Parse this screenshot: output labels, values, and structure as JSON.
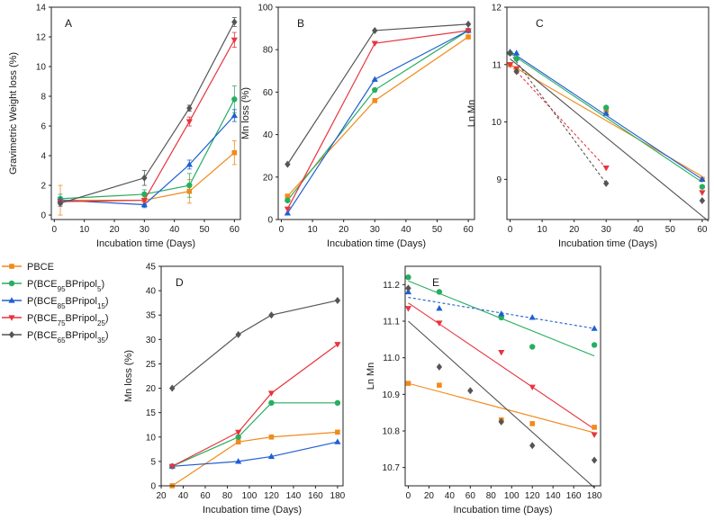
{
  "colors": {
    "PBCE": "#f28a1b",
    "P5": "#27ae60",
    "P15": "#1f5fd1",
    "P25": "#e8343f",
    "P35": "#555555"
  },
  "legend": [
    {
      "key": "PBCE",
      "prefix": "PBCE",
      "sub1": "",
      "mid": "",
      "sub2": "",
      "suffix": "",
      "marker": "square"
    },
    {
      "key": "P5",
      "prefix": "P(BCE",
      "sub1": "95",
      "mid": "BPripol",
      "sub2": "5",
      "suffix": ")",
      "marker": "circle"
    },
    {
      "key": "P15",
      "prefix": "P(BCE",
      "sub1": "85",
      "mid": "BPripol",
      "sub2": "15",
      "suffix": ")",
      "marker": "triangle-up"
    },
    {
      "key": "P25",
      "prefix": "P(BCE",
      "sub1": "75",
      "mid": "BPripol",
      "sub2": "25",
      "suffix": ")",
      "marker": "triangle-down"
    },
    {
      "key": "P35",
      "prefix": "P(BCE",
      "sub1": "65",
      "mid": "BPripol",
      "sub2": "35",
      "suffix": ")",
      "marker": "diamond"
    }
  ],
  "chart_data": [
    {
      "panel": "A",
      "type": "line",
      "xlabel": "Incubation time (Days)",
      "ylabel": "Gravimetric Weight loss (%)",
      "xlim": [
        -1,
        62
      ],
      "ylim": [
        -0.3,
        14
      ],
      "xticks": [
        0,
        10,
        20,
        30,
        40,
        50,
        60
      ],
      "yticks": [
        0,
        2,
        4,
        6,
        8,
        10,
        12,
        14
      ],
      "series": [
        {
          "key": "PBCE",
          "x": [
            2,
            30,
            45,
            60
          ],
          "y": [
            1.0,
            1.0,
            1.6,
            4.2
          ],
          "err": [
            1.0,
            0.3,
            0.8,
            0.8
          ]
        },
        {
          "key": "P5",
          "x": [
            2,
            30,
            45,
            60
          ],
          "y": [
            1.1,
            1.4,
            2.0,
            7.8
          ],
          "err": [
            0.3,
            0.3,
            0.8,
            0.9
          ]
        },
        {
          "key": "P15",
          "x": [
            2,
            30,
            45,
            60
          ],
          "y": [
            1.0,
            0.7,
            3.4,
            6.7
          ],
          "err": [
            0.2,
            0.2,
            0.3,
            0.4
          ]
        },
        {
          "key": "P25",
          "x": [
            2,
            30,
            45,
            60
          ],
          "y": [
            0.9,
            1.0,
            6.3,
            11.8
          ],
          "err": [
            0.2,
            0.3,
            0.3,
            0.5
          ]
        },
        {
          "key": "P35",
          "x": [
            2,
            30,
            45,
            60
          ],
          "y": [
            0.8,
            2.5,
            7.2,
            13.0
          ],
          "err": [
            0.2,
            0.5,
            0.2,
            0.3
          ]
        }
      ]
    },
    {
      "panel": "B",
      "type": "line",
      "xlabel": "Incubation time (Days)",
      "ylabel": "Mn loss (%)",
      "xlim": [
        -1,
        62
      ],
      "ylim": [
        0,
        100
      ],
      "xticks": [
        0,
        10,
        20,
        30,
        40,
        50,
        60
      ],
      "yticks": [
        0,
        20,
        40,
        60,
        80,
        100
      ],
      "series": [
        {
          "key": "PBCE",
          "x": [
            2,
            30,
            60
          ],
          "y": [
            11,
            56,
            86
          ]
        },
        {
          "key": "P5",
          "x": [
            2,
            30,
            60
          ],
          "y": [
            9,
            61,
            89
          ]
        },
        {
          "key": "P15",
          "x": [
            2,
            30,
            60
          ],
          "y": [
            3,
            66,
            89
          ]
        },
        {
          "key": "P25",
          "x": [
            2,
            30,
            60
          ],
          "y": [
            5,
            83,
            89
          ]
        },
        {
          "key": "P35",
          "x": [
            2,
            30,
            60
          ],
          "y": [
            26,
            89,
            92
          ]
        }
      ]
    },
    {
      "panel": "C",
      "type": "scatter",
      "xlabel": "Incubation time (Days)",
      "ylabel": "Ln Mn",
      "xlim": [
        -1,
        62
      ],
      "ylim": [
        8.3,
        12
      ],
      "xticks": [
        0,
        10,
        20,
        30,
        40,
        50,
        60
      ],
      "yticks": [
        9,
        10,
        11,
        12
      ],
      "series": [
        {
          "key": "PBCE",
          "x": [
            0,
            2,
            30,
            60
          ],
          "y": [
            11.0,
            10.9,
            10.2,
            9.0
          ]
        },
        {
          "key": "P5",
          "x": [
            0,
            2,
            30,
            60
          ],
          "y": [
            11.2,
            11.1,
            10.25,
            8.87
          ]
        },
        {
          "key": "P15",
          "x": [
            0,
            2,
            30,
            60
          ],
          "y": [
            11.22,
            11.2,
            10.15,
            9.0
          ]
        },
        {
          "key": "P25",
          "x": [
            0,
            2,
            30,
            60
          ],
          "y": [
            11.0,
            10.93,
            9.2,
            8.77
          ]
        },
        {
          "key": "P35",
          "x": [
            0,
            2,
            30,
            60
          ],
          "y": [
            11.2,
            10.88,
            8.93,
            8.63
          ]
        }
      ],
      "fits": [
        {
          "key": "PBCE",
          "x0": 0,
          "y0": 11.0,
          "x1": 60,
          "y1": 9.05,
          "dash": false
        },
        {
          "key": "P5",
          "x0": 0,
          "y0": 11.2,
          "x1": 60,
          "y1": 8.95,
          "dash": false
        },
        {
          "key": "P15",
          "x0": 0,
          "y0": 11.23,
          "x1": 60,
          "y1": 9.0,
          "dash": false
        },
        {
          "key": "P35",
          "x0": 0,
          "y0": 11.1,
          "x1": 62,
          "y1": 8.27,
          "dash": false
        },
        {
          "key": "P25",
          "x0": 0,
          "y0": 11.0,
          "x1": 30,
          "y1": 9.2,
          "dash": true
        },
        {
          "key": "P35",
          "x0": 0,
          "y0": 11.2,
          "x1": 30,
          "y1": 8.93,
          "dash": true
        }
      ]
    },
    {
      "panel": "D",
      "type": "line",
      "xlabel": "Incubation time (Days)",
      "ylabel": "Mn loss (%)",
      "xlim": [
        20,
        185
      ],
      "ylim": [
        0,
        45
      ],
      "xticks": [
        20,
        40,
        60,
        80,
        100,
        120,
        140,
        160,
        180
      ],
      "yticks": [
        0,
        5,
        10,
        15,
        20,
        25,
        30,
        35,
        40,
        45
      ],
      "series": [
        {
          "key": "PBCE",
          "x": [
            30,
            90,
            120,
            180
          ],
          "y": [
            0,
            9,
            10,
            11
          ]
        },
        {
          "key": "P5",
          "x": [
            30,
            90,
            120,
            180
          ],
          "y": [
            4,
            10,
            17,
            17
          ]
        },
        {
          "key": "P15",
          "x": [
            30,
            90,
            120,
            180
          ],
          "y": [
            4,
            5,
            6,
            9
          ]
        },
        {
          "key": "P25",
          "x": [
            30,
            90,
            120,
            180
          ],
          "y": [
            4,
            11,
            19,
            29
          ]
        },
        {
          "key": "P35",
          "x": [
            30,
            90,
            120,
            180
          ],
          "y": [
            20,
            31,
            35,
            38
          ]
        }
      ]
    },
    {
      "panel": "E",
      "type": "scatter",
      "xlabel": "Incubation time (Days)",
      "ylabel": "Ln Mn",
      "xlim": [
        -3,
        186
      ],
      "ylim": [
        10.65,
        11.25
      ],
      "xticks": [
        0,
        20,
        40,
        60,
        80,
        100,
        120,
        140,
        160,
        180
      ],
      "yticks": [
        10.7,
        10.8,
        10.9,
        11.0,
        11.1,
        11.2
      ],
      "series": [
        {
          "key": "PBCE",
          "x": [
            0,
            30,
            90,
            120,
            180
          ],
          "y": [
            10.93,
            10.925,
            10.83,
            10.82,
            10.81
          ]
        },
        {
          "key": "P5",
          "x": [
            0,
            30,
            90,
            120,
            180
          ],
          "y": [
            11.22,
            11.18,
            11.11,
            11.03,
            11.035
          ]
        },
        {
          "key": "P15",
          "x": [
            0,
            30,
            90,
            120,
            180
          ],
          "y": [
            11.18,
            11.135,
            11.12,
            11.11,
            11.08
          ]
        },
        {
          "key": "P25",
          "x": [
            0,
            30,
            90,
            120,
            180
          ],
          "y": [
            11.135,
            11.095,
            11.015,
            10.92,
            10.79
          ]
        },
        {
          "key": "P35",
          "x": [
            0,
            30,
            60,
            90,
            120,
            180
          ],
          "y": [
            11.19,
            10.975,
            10.91,
            10.825,
            10.76,
            10.72
          ]
        }
      ],
      "fits": [
        {
          "key": "PBCE",
          "x0": 0,
          "y0": 10.93,
          "x1": 180,
          "y1": 10.795,
          "dash": false
        },
        {
          "key": "P5",
          "x0": 0,
          "y0": 11.21,
          "x1": 180,
          "y1": 11.005,
          "dash": false
        },
        {
          "key": "P15",
          "x0": 0,
          "y0": 11.165,
          "x1": 180,
          "y1": 11.08,
          "dash": true
        },
        {
          "key": "P25",
          "x0": 0,
          "y0": 11.15,
          "x1": 180,
          "y1": 10.805,
          "dash": false
        },
        {
          "key": "P35",
          "x0": 0,
          "y0": 11.1,
          "x1": 180,
          "y1": 10.645,
          "dash": false
        }
      ]
    }
  ]
}
